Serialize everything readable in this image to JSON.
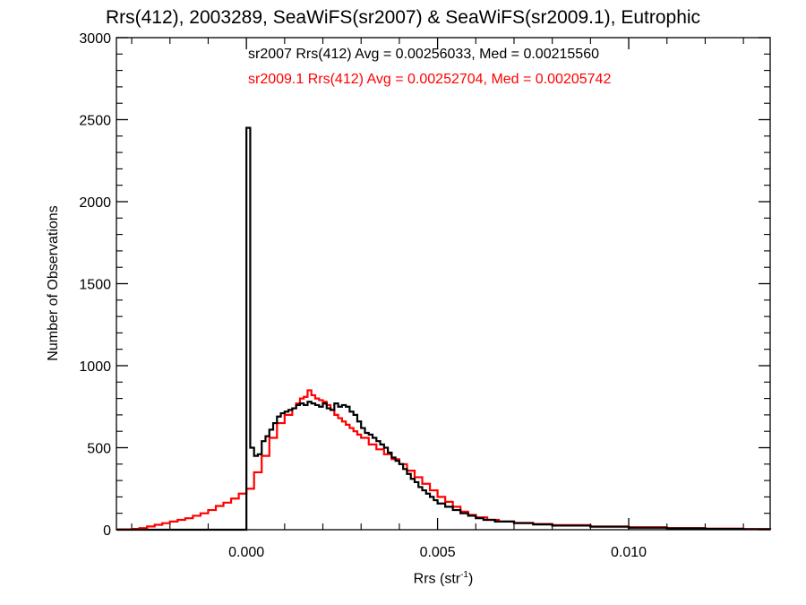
{
  "chart_data": {
    "type": "line",
    "style": "step-histogram",
    "title": "Rrs(412), 2003289, SeaWiFS(sr2007) & SeaWiFS(sr2009.1), Eutrophic",
    "xlabel_main": "Rrs (str",
    "xlabel_sup": "-1",
    "xlabel_close": ")",
    "ylabel": "Number of Observations",
    "xlim": [
      -0.0034,
      0.0137
    ],
    "ylim": [
      0,
      3000
    ],
    "x_ticks": [
      0.0,
      0.005,
      0.01
    ],
    "x_tick_labels": [
      "0.000",
      "0.005",
      "0.010"
    ],
    "y_ticks": [
      0,
      500,
      1000,
      1500,
      2000,
      2500,
      3000
    ],
    "y_tick_labels": [
      "0",
      "500",
      "1000",
      "1500",
      "2000",
      "2500",
      "3000"
    ],
    "grid": false,
    "annotations": [
      {
        "text": "sr2007 Rrs(412) Avg = 0.00256033, Med = 0.00215560",
        "color": "#000000"
      },
      {
        "text": "sr2009.1 Rrs(412) Avg = 0.00252704, Med = 0.00205742",
        "color": "#ff0000"
      }
    ],
    "series": [
      {
        "color": "#000000",
        "x": [
          -0.0034,
          -1e-05,
          0.0,
          0.0001,
          0.0002,
          0.0003,
          0.0004,
          0.0005,
          0.0006,
          0.0007,
          0.0008,
          0.0009,
          0.001,
          0.0011,
          0.0012,
          0.0013,
          0.0014,
          0.0015,
          0.0016,
          0.0017,
          0.0018,
          0.0019,
          0.002,
          0.0021,
          0.0022,
          0.0023,
          0.0024,
          0.0025,
          0.0026,
          0.0027,
          0.0028,
          0.0029,
          0.003,
          0.0031,
          0.0032,
          0.0033,
          0.0034,
          0.0035,
          0.0036,
          0.0037,
          0.0038,
          0.0039,
          0.004,
          0.0041,
          0.0042,
          0.0043,
          0.0044,
          0.0045,
          0.0046,
          0.0047,
          0.0048,
          0.0049,
          0.005,
          0.0052,
          0.0054,
          0.0056,
          0.0058,
          0.006,
          0.0062,
          0.0065,
          0.007,
          0.0075,
          0.008,
          0.009,
          0.01,
          0.011,
          0.012,
          0.013,
          0.0137
        ],
        "y": [
          0,
          0,
          2450,
          500,
          450,
          460,
          540,
          570,
          610,
          650,
          690,
          710,
          720,
          730,
          740,
          760,
          770,
          760,
          780,
          770,
          760,
          750,
          770,
          740,
          730,
          770,
          750,
          760,
          750,
          720,
          700,
          660,
          620,
          590,
          580,
          560,
          540,
          520,
          500,
          470,
          440,
          420,
          400,
          370,
          340,
          310,
          290,
          260,
          240,
          220,
          200,
          180,
          160,
          140,
          120,
          100,
          85,
          70,
          60,
          50,
          40,
          32,
          25,
          18,
          12,
          8,
          5,
          3,
          2
        ]
      },
      {
        "color": "#ff0000",
        "x": [
          -0.0034,
          -0.003,
          -0.0028,
          -0.0026,
          -0.0024,
          -0.0022,
          -0.002,
          -0.0018,
          -0.0016,
          -0.0014,
          -0.0012,
          -0.001,
          -0.0008,
          -0.0006,
          -0.0004,
          -0.0002,
          0.0,
          0.0002,
          0.0004,
          0.0006,
          0.0008,
          0.001,
          0.0012,
          0.0013,
          0.0014,
          0.0015,
          0.0016,
          0.0017,
          0.0018,
          0.0019,
          0.002,
          0.0021,
          0.0022,
          0.0023,
          0.0024,
          0.0025,
          0.0026,
          0.0027,
          0.0028,
          0.0029,
          0.003,
          0.0032,
          0.0034,
          0.0036,
          0.0038,
          0.004,
          0.0042,
          0.0044,
          0.0046,
          0.0048,
          0.005,
          0.0052,
          0.0054,
          0.0056,
          0.0058,
          0.006,
          0.0063,
          0.0066,
          0.007,
          0.0075,
          0.008,
          0.009,
          0.01,
          0.011,
          0.012,
          0.013,
          0.0137
        ],
        "y": [
          2,
          5,
          10,
          20,
          30,
          40,
          50,
          60,
          70,
          85,
          100,
          120,
          145,
          165,
          190,
          220,
          250,
          350,
          450,
          560,
          650,
          700,
          740,
          770,
          800,
          810,
          850,
          820,
          800,
          790,
          780,
          760,
          730,
          700,
          680,
          660,
          640,
          620,
          600,
          580,
          560,
          520,
          490,
          460,
          430,
          400,
          360,
          320,
          280,
          240,
          200,
          170,
          140,
          110,
          90,
          75,
          60,
          50,
          42,
          35,
          28,
          20,
          15,
          10,
          7,
          4,
          3
        ]
      }
    ]
  }
}
